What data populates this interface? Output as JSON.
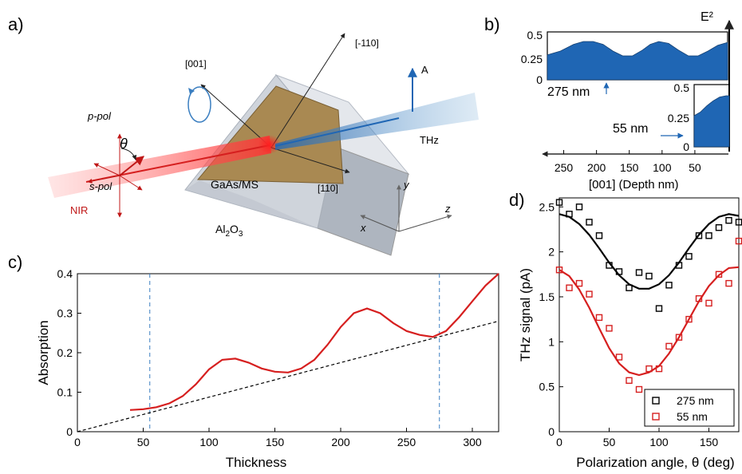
{
  "panels": {
    "a": {
      "label": "a)",
      "axis_labels": {
        "n001": "[001]",
        "n110m": "[-110]",
        "n110": "[110]"
      },
      "beam_labels": {
        "a": "A",
        "thz": "THz",
        "nir": "NIR",
        "ppol": "p-pol",
        "spol": "s-pol",
        "theta": "θ"
      },
      "sample_labels": {
        "film": "GaAs/MS",
        "substrate": "Al2O3"
      },
      "coord_labels": {
        "x": "x",
        "y": "y",
        "z": "z"
      },
      "colors": {
        "nir": "#d61f1f",
        "thz": "#2b7cc0",
        "film": "#a57a45",
        "substrate": "#c9ced6"
      }
    },
    "b": {
      "label": "b)",
      "e2_label": "E²",
      "thick_label": "275 nm",
      "thin_label": "55 nm",
      "xlabel": "[001] (Depth nm)"
    },
    "c": {
      "label": "c)"
    },
    "d": {
      "label": "d)"
    }
  },
  "chart_data": [
    {
      "id": "b-top",
      "type": "area",
      "title": "",
      "xlabel": "[001] (Depth nm)",
      "ylabel": "E²",
      "xlim": [
        275,
        0
      ],
      "ylim": [
        0,
        0.5
      ],
      "yticks": [
        "0.5",
        "0.25",
        "0"
      ],
      "x": [
        275,
        255,
        235,
        220,
        205,
        190,
        175,
        160,
        145,
        130,
        118,
        105,
        90,
        75,
        60,
        45,
        30,
        15,
        0
      ],
      "y": [
        0.26,
        0.3,
        0.37,
        0.4,
        0.4,
        0.37,
        0.3,
        0.25,
        0.25,
        0.31,
        0.37,
        0.4,
        0.38,
        0.31,
        0.25,
        0.25,
        0.3,
        0.36,
        0.39
      ],
      "color": "#1f66b4"
    },
    {
      "id": "b-bottom",
      "type": "area",
      "title": "",
      "xlim": [
        55,
        0
      ],
      "ylim": [
        0,
        0.5
      ],
      "yticks": [
        "0.5",
        "0.25",
        "0"
      ],
      "xticks": [
        "250",
        "200",
        "150",
        "100",
        "50"
      ],
      "x": [
        55,
        45,
        35,
        25,
        15,
        5,
        0
      ],
      "y": [
        0.25,
        0.28,
        0.33,
        0.37,
        0.4,
        0.41,
        0.41
      ],
      "color": "#1f66b4"
    },
    {
      "id": "c-absorption",
      "type": "line",
      "title": "",
      "xlabel": "Thickness",
      "ylabel": "Absorption",
      "xlim": [
        0,
        320
      ],
      "ylim": [
        0,
        0.4
      ],
      "xticks": [
        "0",
        "50",
        "100",
        "150",
        "200",
        "250",
        "300"
      ],
      "yticks": [
        "0",
        "0.1",
        "0.2",
        "0.3",
        "0.4"
      ],
      "series": [
        {
          "x": [
            40,
            50,
            60,
            70,
            80,
            90,
            100,
            110,
            120,
            130,
            140,
            150,
            160,
            170,
            180,
            190,
            200,
            210,
            220,
            230,
            240,
            250,
            260,
            270,
            280,
            290,
            300,
            310,
            320
          ],
          "y": [
            0.055,
            0.057,
            0.062,
            0.072,
            0.09,
            0.12,
            0.158,
            0.182,
            0.185,
            0.175,
            0.16,
            0.152,
            0.15,
            0.16,
            0.182,
            0.22,
            0.265,
            0.3,
            0.312,
            0.3,
            0.275,
            0.255,
            0.245,
            0.24,
            0.255,
            0.29,
            0.33,
            0.37,
            0.4
          ],
          "color": "#d61f1f"
        }
      ],
      "reference_line": {
        "x": [
          0,
          320
        ],
        "y": [
          0,
          0.28
        ],
        "color": "#000000"
      },
      "vlines": [
        55,
        275
      ]
    },
    {
      "id": "d-thz",
      "type": "scatter",
      "title": "",
      "xlabel": "Polarization angle, θ (deg)",
      "ylabel": "THz signal (pA)",
      "xlim": [
        0,
        180
      ],
      "ylim": [
        0,
        2.6
      ],
      "xticks": [
        "0",
        "50",
        "100",
        "150"
      ],
      "yticks": [
        "0",
        "0.5",
        "1",
        "1.5",
        "2",
        "2.5"
      ],
      "legend_position": "bottom-right",
      "series": [
        {
          "name": "275 nm",
          "color": "#000000",
          "x": [
            0,
            10,
            20,
            30,
            40,
            50,
            60,
            70,
            80,
            90,
            100,
            110,
            120,
            130,
            140,
            150,
            160,
            170,
            180
          ],
          "y": [
            2.55,
            2.42,
            2.5,
            2.33,
            2.18,
            1.85,
            1.78,
            1.6,
            1.77,
            1.73,
            1.37,
            1.63,
            1.85,
            1.95,
            2.18,
            2.18,
            2.27,
            2.35,
            2.33
          ],
          "fit_y": [
            2.42,
            2.39,
            2.31,
            2.19,
            2.04,
            1.88,
            1.74,
            1.64,
            1.59,
            1.59,
            1.64,
            1.74,
            1.88,
            2.04,
            2.19,
            2.31,
            2.39,
            2.42,
            2.4
          ]
        },
        {
          "name": "55 nm",
          "color": "#d61f1f",
          "x": [
            0,
            10,
            20,
            30,
            40,
            50,
            60,
            70,
            80,
            90,
            100,
            110,
            120,
            130,
            140,
            150,
            160,
            170,
            180
          ],
          "y": [
            1.8,
            1.6,
            1.65,
            1.53,
            1.27,
            1.15,
            0.83,
            0.57,
            0.47,
            0.7,
            0.7,
            0.95,
            1.05,
            1.25,
            1.48,
            1.43,
            1.75,
            1.65,
            2.12
          ],
          "fit_y": [
            1.8,
            1.73,
            1.58,
            1.38,
            1.15,
            0.93,
            0.76,
            0.66,
            0.63,
            0.66,
            0.73,
            0.87,
            1.05,
            1.25,
            1.45,
            1.62,
            1.74,
            1.82,
            1.83
          ]
        }
      ]
    }
  ]
}
